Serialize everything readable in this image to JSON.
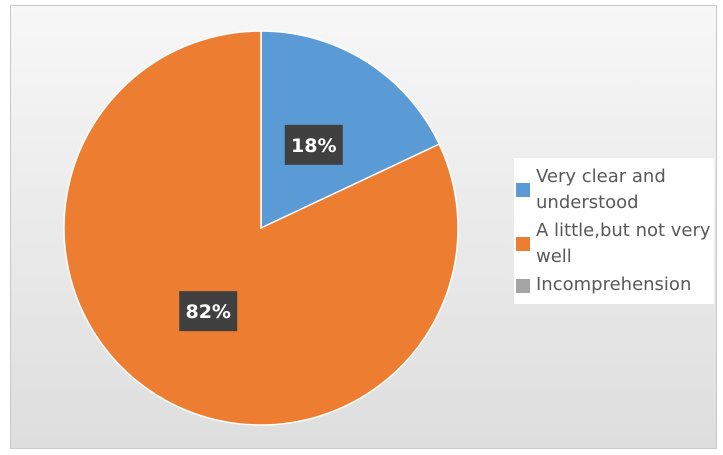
{
  "chart_data": {
    "type": "pie",
    "categories": [
      "Very clear and understood",
      "A little,but not very well",
      "Incomprehension"
    ],
    "values": [
      18,
      82,
      0
    ],
    "data_labels": [
      "18%",
      "82%",
      ""
    ],
    "colors": [
      "#5b9bd5",
      "#ed7d31",
      "#a5a5a5"
    ],
    "legend_position": "right",
    "start_angle": "12 o'clock, clockwise"
  }
}
